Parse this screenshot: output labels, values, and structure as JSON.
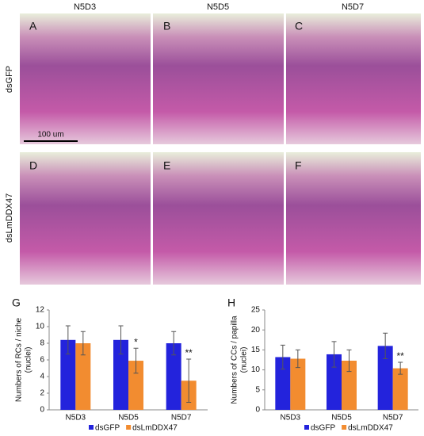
{
  "figure": {
    "columns": [
      "N5D3",
      "N5D5",
      "N5D7"
    ],
    "rows": [
      "dsGFP",
      "dsLmDDX47"
    ],
    "panels": [
      "A",
      "B",
      "C",
      "D",
      "E",
      "F"
    ],
    "scale_bar": "100 um"
  },
  "chart_data": [
    {
      "type": "bar",
      "panel": "G",
      "ylabel": [
        "Numbers of RCs / niche",
        "(nuclei)"
      ],
      "categories": [
        "N5D3",
        "N5D5",
        "N5D7"
      ],
      "series": [
        {
          "name": "dsGFP",
          "color": "#2323dc",
          "values": [
            8.4,
            8.4,
            8.0
          ],
          "errors": [
            1.7,
            1.7,
            1.4
          ]
        },
        {
          "name": "dsLmDDX47",
          "color": "#f28c30",
          "values": [
            8.0,
            5.9,
            3.5
          ],
          "errors": [
            1.4,
            1.5,
            2.6
          ]
        }
      ],
      "annotations": [
        {
          "text": "*",
          "x": "N5D5"
        },
        {
          "text": "**",
          "x": "N5D7"
        }
      ],
      "ylim": [
        0,
        12
      ],
      "yticks": [
        0,
        2,
        4,
        6,
        8,
        10,
        12
      ]
    },
    {
      "type": "bar",
      "panel": "H",
      "ylabel": [
        "Numbers of CCs / papilla",
        "(nuclei)"
      ],
      "categories": [
        "N5D3",
        "N5D5",
        "N5D7"
      ],
      "series": [
        {
          "name": "dsGFP",
          "color": "#2323dc",
          "values": [
            13.2,
            13.9,
            16.0
          ],
          "errors": [
            3.0,
            3.2,
            3.2
          ]
        },
        {
          "name": "dsLmDDX47",
          "color": "#f28c30",
          "values": [
            12.8,
            12.3,
            10.4
          ],
          "errors": [
            2.2,
            2.7,
            1.5
          ]
        }
      ],
      "annotations": [
        {
          "text": "**",
          "x": "N5D7"
        }
      ],
      "ylim": [
        0,
        25
      ],
      "yticks": [
        0,
        5,
        10,
        15,
        20,
        25
      ]
    }
  ]
}
